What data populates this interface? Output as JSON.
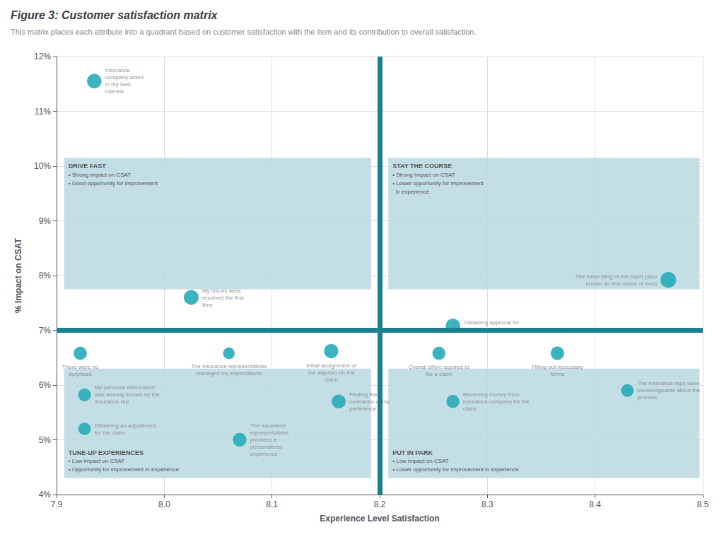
{
  "chart_data": {
    "type": "scatter",
    "title": "Figure 3: Customer satisfaction matrix",
    "subtitle": "This matrix places each attribute into a quadrant based on customer satisfaction with the item and its contribution to overall satisfaction.",
    "xlabel": "Experience Level Satisfaction",
    "ylabel": "% Impact on CSAT",
    "xlim": [
      7.9,
      8.5
    ],
    "ylim": [
      0.04,
      0.12
    ],
    "xticks": [
      7.9,
      {
        "value": 8.0,
        "label": "8.0"
      },
      8.1,
      8.2,
      8.3,
      8.4,
      8.5
    ],
    "yticks": [
      {
        "value": 0.04,
        "label": "4%"
      },
      {
        "value": 0.05,
        "label": "5%"
      },
      {
        "value": 0.06,
        "label": "6%"
      },
      {
        "value": 0.07,
        "label": "7%"
      },
      {
        "value": 0.08,
        "label": "8%"
      },
      {
        "value": 0.09,
        "label": "9%"
      },
      {
        "value": 0.1,
        "label": "10%"
      },
      {
        "value": 0.11,
        "label": "11%"
      },
      {
        "value": 0.12,
        "label": "12%"
      }
    ],
    "grid": true,
    "color": "#2aacbb",
    "x": [
      7.935,
      8.025,
      7.922,
      7.926,
      7.926,
      8.06,
      8.07,
      8.155,
      8.162,
      8.255,
      8.268,
      8.268,
      8.365,
      8.43,
      8.468
    ],
    "values": [
      0.1155,
      0.076,
      0.0658,
      0.0582,
      0.052,
      0.0658,
      0.05,
      0.0662,
      0.057,
      0.0658,
      0.0708,
      0.057,
      0.0658,
      0.059,
      0.0792
    ],
    "sizes": [
      220,
      230,
      180,
      170,
      160,
      140,
      195,
      210,
      200,
      175,
      215,
      175,
      185,
      165,
      255
    ],
    "labels": [
      "Insurance\ncompany acted\nin my best\ninterest",
      "My issues were\nresolved the first\ntime",
      "There were no\nsurprises",
      "My personal information\nwas already known by the\ninsurance rep",
      "Obtaining an adjustment\nfor the claim",
      "The insurance representatives\nmanaged my expectations",
      "The insurance\nrepresentatives\nprovided a\npersonalized\nexperience",
      "Initial assignment of\nthe adjustor on the\nclaim",
      "Finding the\ncontractor of my\npreference",
      "Overall effort required to\nfile a claim",
      "Obtaining approval for\nthe claim",
      "Receiving money from\ninsurance company for the\nclaim",
      "Filling out necessary\nforms",
      "The insurance reps were\nknowledgeable about the\nprocess",
      "The initial filing of the claim (also\nknown as first notice of loss)"
    ],
    "crosshair": {
      "x": 8.2,
      "y": 0.066,
      "color": "#1a8090"
    },
    "quadrants": [
      {
        "title": "DRIVE FAST",
        "bullets": [
          "• Strong impact on CSAT",
          "• Good opportunity for improvement"
        ],
        "x0": 7.907,
        "y0": 0.0775,
        "x1": 8.192,
        "y1": 0.1015,
        "color": "#bad8e0"
      },
      {
        "title": "STAY THE COURSE",
        "bullets": [
          "• Strong impact on CSAT",
          "• Lower opportunity for improvement",
          "  in experience"
        ],
        "x0": 8.208,
        "y0": 0.0775,
        "x1": 8.497,
        "y1": 0.1015,
        "color": "#bad8e0"
      },
      {
        "title": "TUNE-UP EXPERIENCES",
        "bullets": [
          "• Low impact on CSAT",
          "• Opportunity for improvement in experience"
        ],
        "x0": 7.907,
        "y0": 0.043,
        "x1": 8.192,
        "y1": 0.063,
        "color": "#bad8e0"
      },
      {
        "title": "PUT IN PARK",
        "bullets": [
          "• Low impact on CSAT",
          "• Lower opportunity for improvement in experience"
        ],
        "x0": 8.208,
        "y0": 0.043,
        "x1": 8.497,
        "y1": 0.063,
        "color": "#bad8e0"
      }
    ]
  }
}
